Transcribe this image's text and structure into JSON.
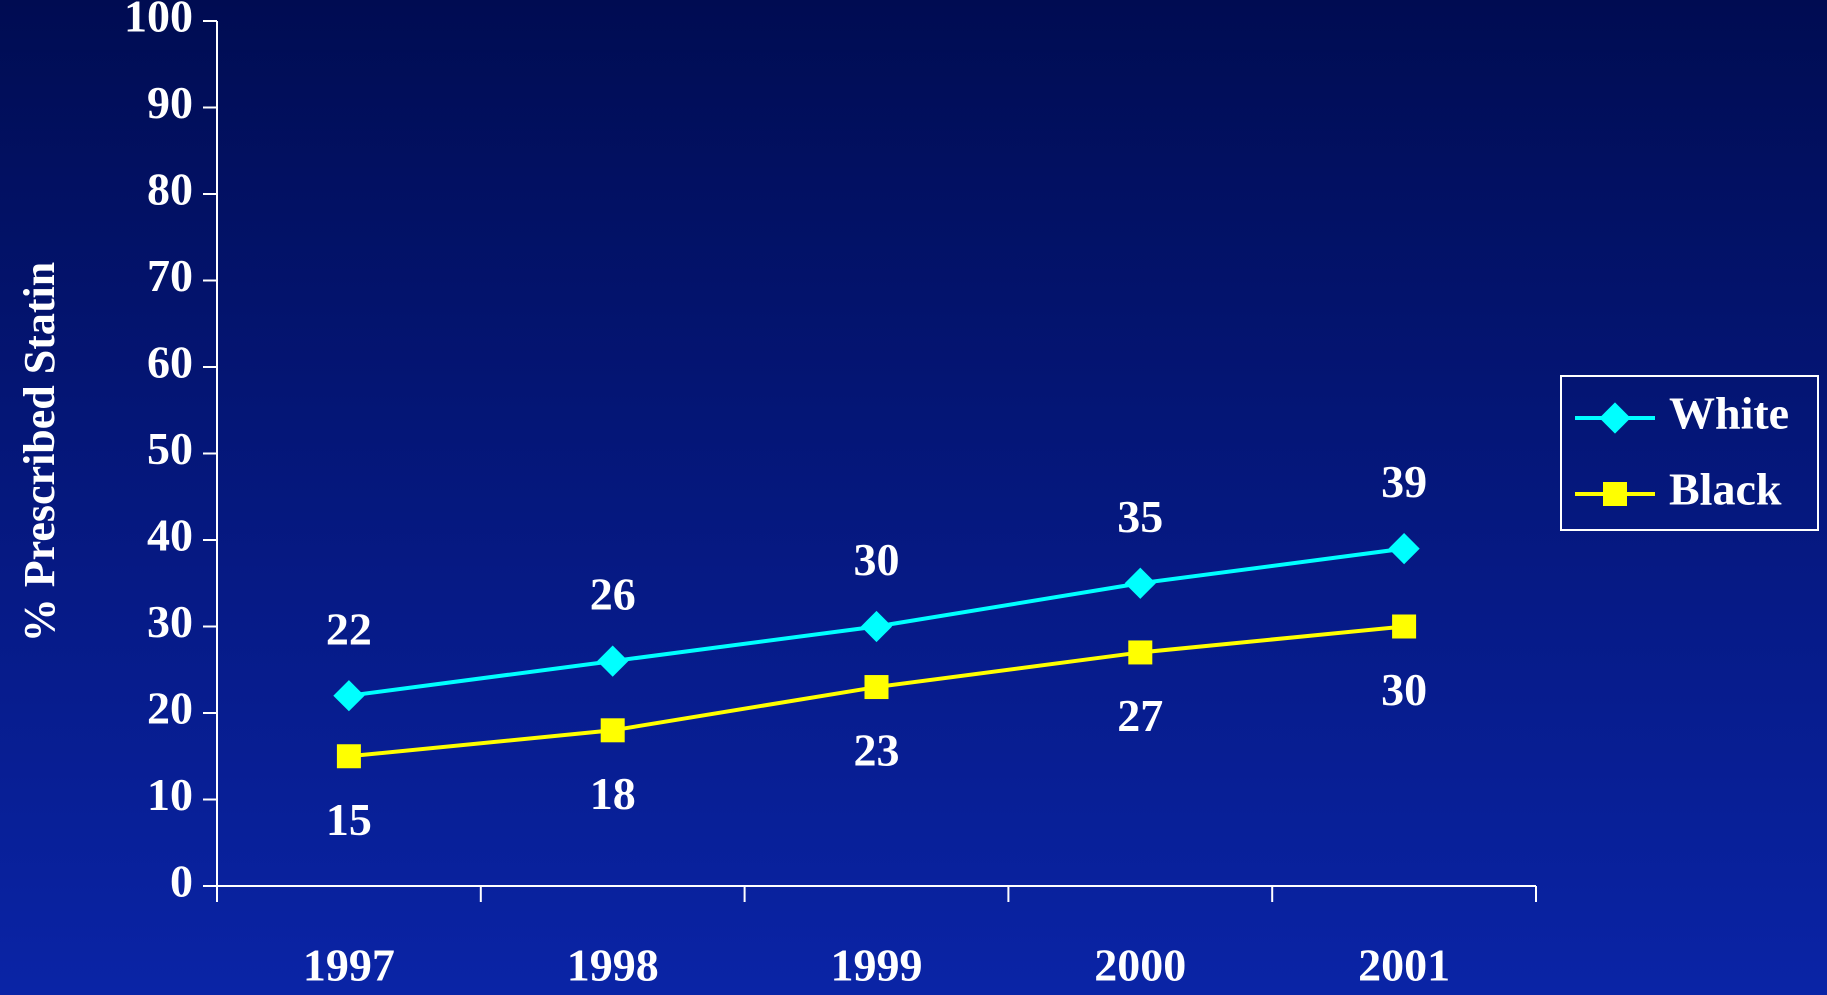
{
  "chart_data": {
    "type": "line",
    "y_label": "% Prescribed Statin",
    "categories": [
      "1997",
      "1998",
      "1999",
      "2000",
      "2001"
    ],
    "series": [
      {
        "name": "White",
        "color": "#00ffff",
        "marker": "diamond",
        "values": [
          22,
          26,
          30,
          35,
          39
        ]
      },
      {
        "name": "Black",
        "color": "#ffff00",
        "marker": "square",
        "values": [
          15,
          18,
          23,
          27,
          30
        ]
      }
    ],
    "ylim": [
      0,
      100
    ],
    "yticks": [
      0,
      10,
      20,
      30,
      40,
      50,
      60,
      70,
      80,
      90,
      100
    ],
    "legend": "right"
  }
}
